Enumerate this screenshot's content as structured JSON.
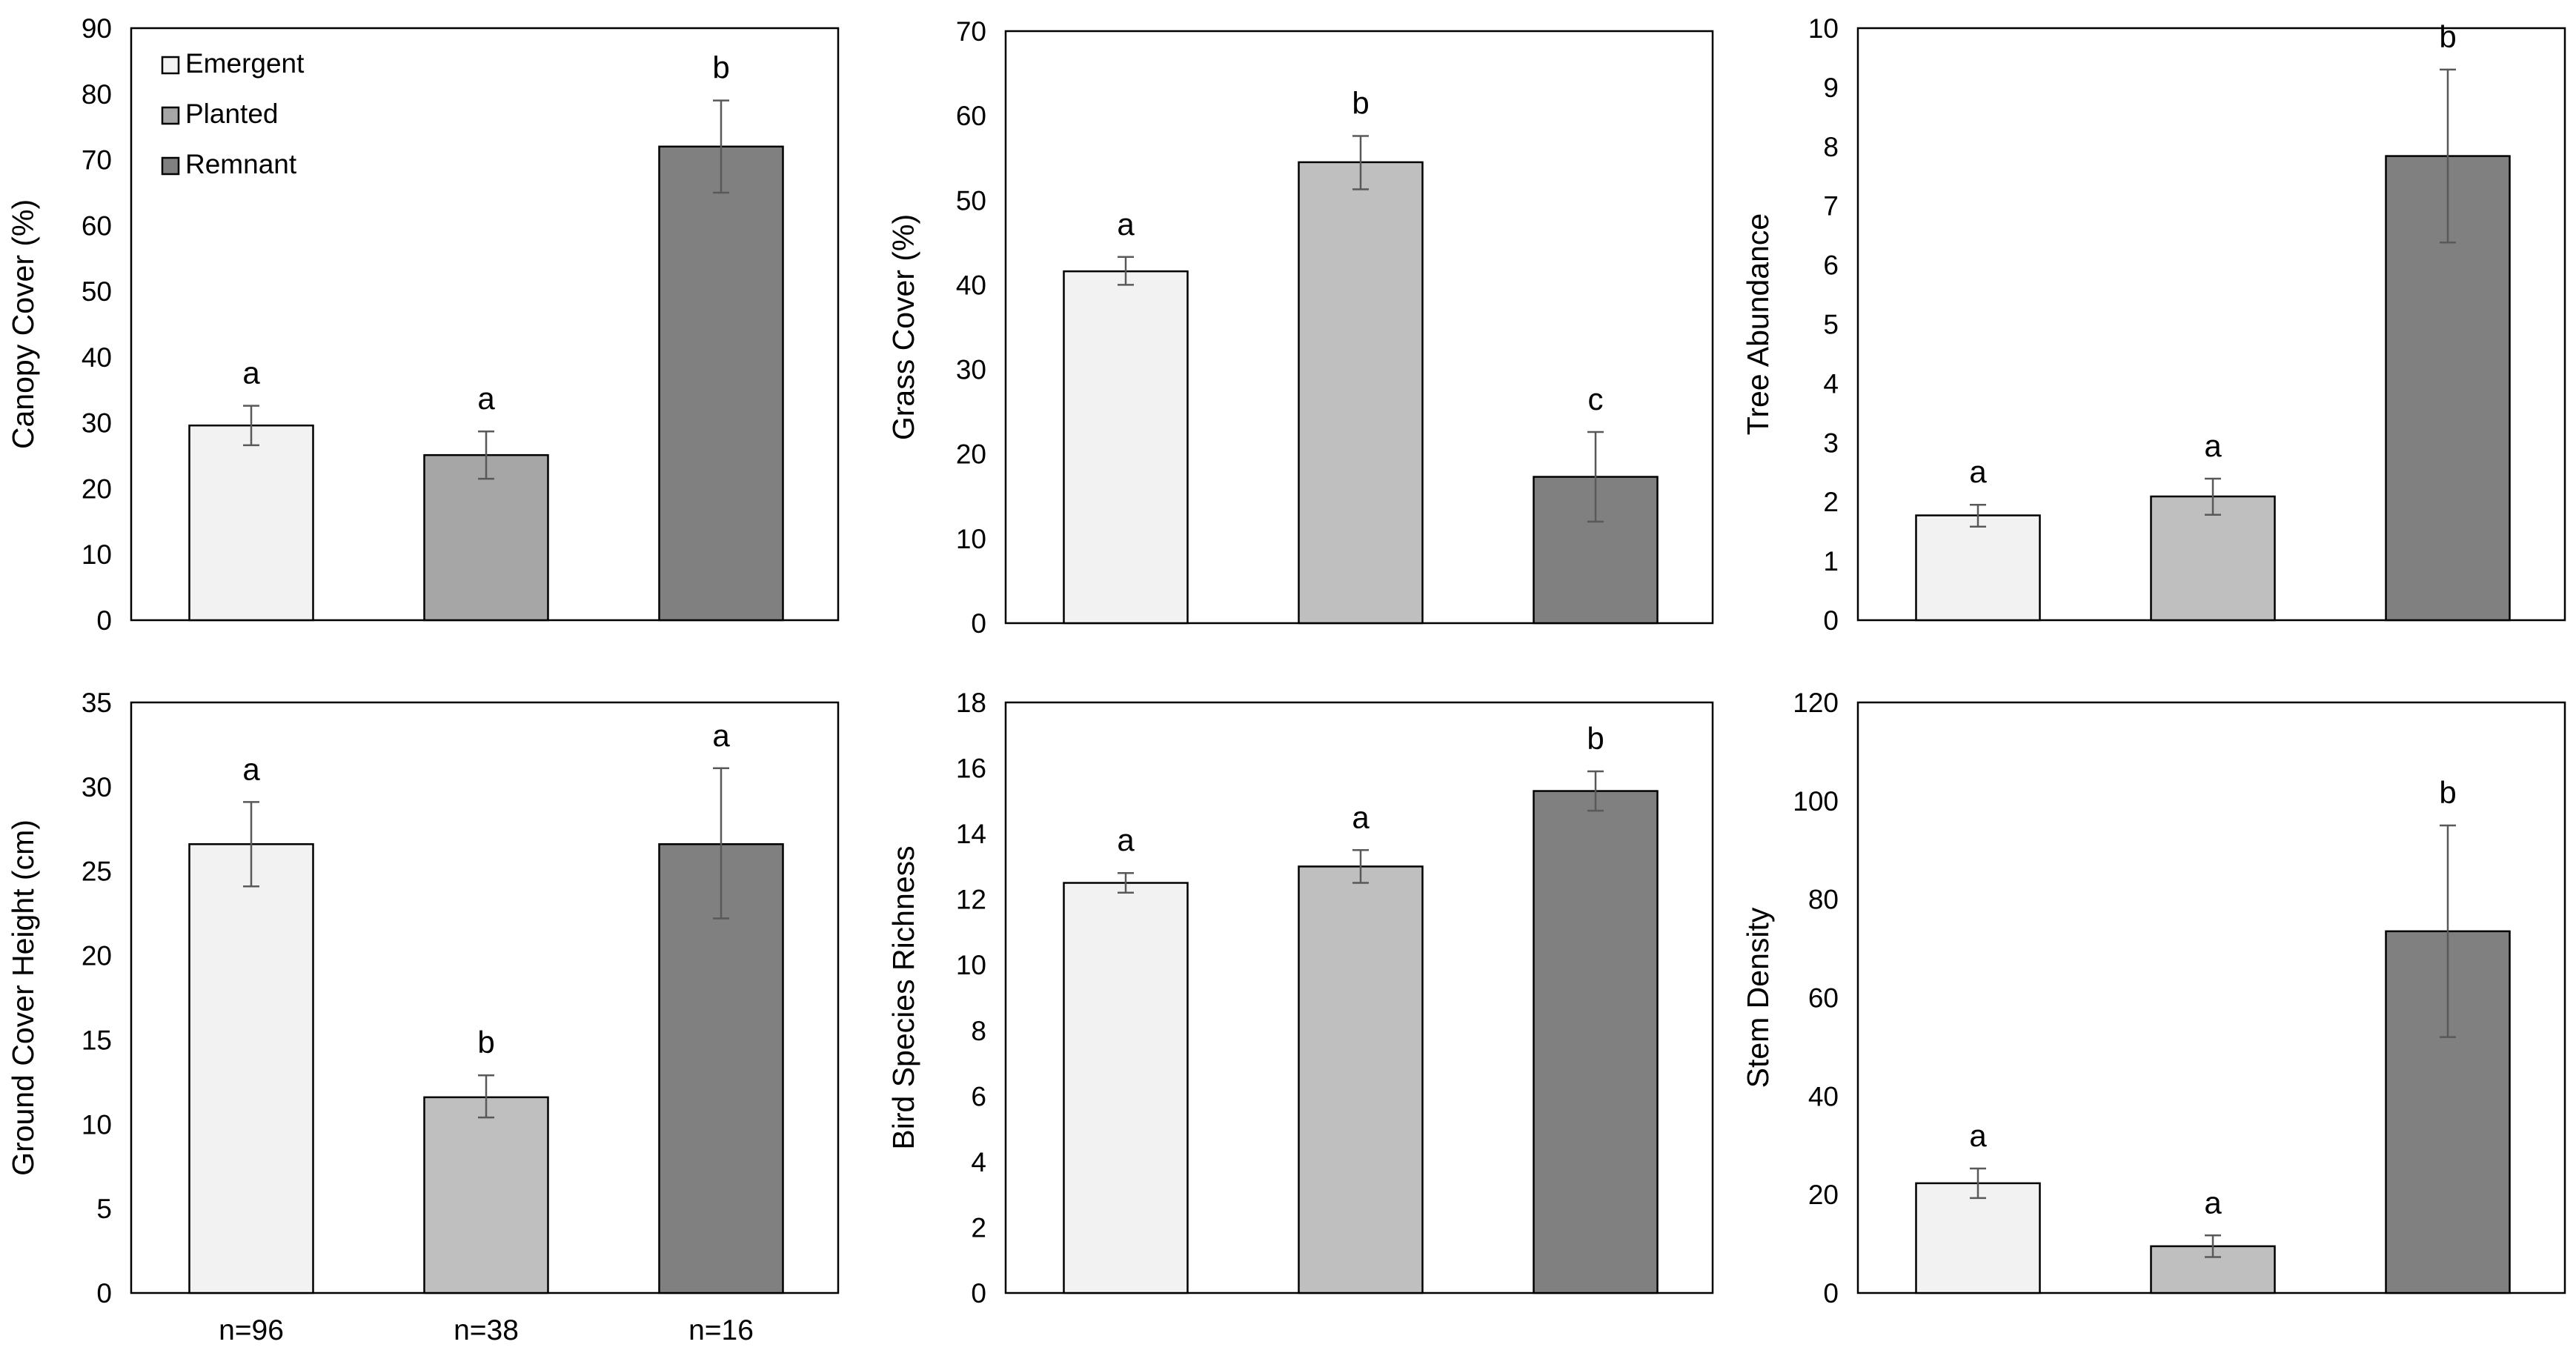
{
  "figure": {
    "series_colors": {
      "Emergent": "#f2f2f2",
      "Planted": "#bfbfbf",
      "Remnant": "#808080"
    },
    "legend_swatch_colors": [
      "#f2f2f2",
      "#a6a6a6",
      "#808080"
    ],
    "sample_sizes": [
      "n=96",
      "n=38",
      "n=16"
    ]
  },
  "chart_data": [
    {
      "type": "bar",
      "title": "",
      "xlabel": "",
      "ylabel": "Canopy Cover (%)",
      "ylim": [
        0,
        90
      ],
      "yticks": [
        0,
        10,
        20,
        30,
        40,
        50,
        60,
        70,
        80,
        90
      ],
      "categories": [
        "Emergent",
        "Planted",
        "Remnant"
      ],
      "colors": [
        "#f2f2f2",
        "#a6a6a6",
        "#808080"
      ],
      "values": [
        29.6,
        25.1,
        72.0
      ],
      "error_lower": [
        26.6,
        21.5,
        65.0
      ],
      "error_upper": [
        32.6,
        28.7,
        79.0
      ],
      "letters": [
        "a",
        "a",
        "b"
      ],
      "legend": [
        "Emergent",
        "Planted",
        "Remnant"
      ],
      "legend_position": "top-left",
      "grid": false
    },
    {
      "type": "bar",
      "title": "",
      "xlabel": "",
      "ylabel": "Grass Cover (%)",
      "ylim": [
        0,
        70
      ],
      "yticks": [
        0,
        10,
        20,
        30,
        40,
        50,
        60,
        70
      ],
      "categories": [
        "Emergent",
        "Planted",
        "Remnant"
      ],
      "colors": [
        "#f2f2f2",
        "#bfbfbf",
        "#808080"
      ],
      "values": [
        41.6,
        54.5,
        17.3
      ],
      "error_lower": [
        40.0,
        51.3,
        12.0
      ],
      "error_upper": [
        43.3,
        57.6,
        22.6
      ],
      "letters": [
        "a",
        "b",
        "c"
      ],
      "grid": false
    },
    {
      "type": "bar",
      "title": "",
      "xlabel": "",
      "ylabel": "Tree Abundance",
      "ylim": [
        0,
        10
      ],
      "yticks": [
        0,
        1,
        2,
        3,
        4,
        5,
        6,
        7,
        8,
        9,
        10
      ],
      "categories": [
        "Emergent",
        "Planted",
        "Remnant"
      ],
      "colors": [
        "#f2f2f2",
        "#bfbfbf",
        "#808080"
      ],
      "values": [
        1.77,
        2.09,
        7.84
      ],
      "error_lower": [
        1.58,
        1.78,
        6.38
      ],
      "error_upper": [
        1.95,
        2.39,
        9.3
      ],
      "letters": [
        "a",
        "a",
        "b"
      ],
      "grid": false
    },
    {
      "type": "bar",
      "title": "",
      "xlabel": "",
      "ylabel": "Ground Cover Height (cm)",
      "ylim": [
        0,
        35
      ],
      "yticks": [
        0,
        5,
        10,
        15,
        20,
        25,
        30,
        35
      ],
      "categories": [
        "Emergent",
        "Planted",
        "Remnant"
      ],
      "colors": [
        "#f2f2f2",
        "#bfbfbf",
        "#808080"
      ],
      "values": [
        26.6,
        11.6,
        26.6
      ],
      "error_lower": [
        24.1,
        10.4,
        22.2
      ],
      "error_upper": [
        29.1,
        12.9,
        31.1
      ],
      "letters": [
        "a",
        "b",
        "a"
      ],
      "grid": false
    },
    {
      "type": "bar",
      "title": "",
      "xlabel": "",
      "ylabel": "Bird Species Richness",
      "ylim": [
        0,
        18
      ],
      "yticks": [
        0,
        2,
        4,
        6,
        8,
        10,
        12,
        14,
        16,
        18
      ],
      "categories": [
        "Emergent",
        "Planted",
        "Remnant"
      ],
      "colors": [
        "#f2f2f2",
        "#bfbfbf",
        "#808080"
      ],
      "values": [
        12.5,
        13.0,
        15.3
      ],
      "error_lower": [
        12.2,
        12.5,
        14.7
      ],
      "error_upper": [
        12.8,
        13.5,
        15.9
      ],
      "letters": [
        "a",
        "a",
        "b"
      ],
      "grid": false
    },
    {
      "type": "bar",
      "title": "",
      "xlabel": "",
      "ylabel": "Stem Density",
      "ylim": [
        0,
        120
      ],
      "yticks": [
        0,
        20,
        40,
        60,
        80,
        100,
        120
      ],
      "categories": [
        "Emergent",
        "Planted",
        "Remnant"
      ],
      "colors": [
        "#f2f2f2",
        "#bfbfbf",
        "#808080"
      ],
      "values": [
        22.3,
        9.5,
        73.5
      ],
      "error_lower": [
        19.3,
        7.3,
        52.0
      ],
      "error_upper": [
        25.3,
        11.7,
        95.0
      ],
      "letters": [
        "a",
        "a",
        "b"
      ],
      "grid": false
    }
  ]
}
